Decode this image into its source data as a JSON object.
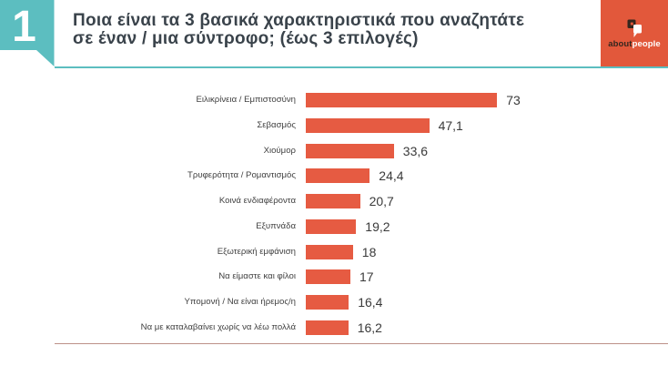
{
  "slide": {
    "question_number": "1",
    "title_line1": "Ποια είναι τα 3 βασικά χαρακτηριστικά που αναζητάτε",
    "title_line2": "σε έναν / μια σύντροφο; (έως 3 επιλογές)"
  },
  "logo": {
    "text_dark": "about",
    "text_light": "people",
    "icon": "speech-bubbles-icon"
  },
  "colors": {
    "teal": "#5cbec0",
    "bar_orange": "#e65b42",
    "logo_background": "#e2583b",
    "title_text": "#3a434b",
    "category_text": "#3f3f3f",
    "value_text": "#3a3a3a",
    "bottom_rule": "#bd9189"
  },
  "chart_data": {
    "type": "bar",
    "orientation": "horizontal",
    "title": "Ποια είναι τα 3 βασικά χαρακτηριστικά που αναζητάτε σε έναν / μια σύντροφο; (έως 3 επιλογές)",
    "categories": [
      "Ειλικρίνεια / Εμπιστοσύνη",
      "Σεβασμός",
      "Χιούμορ",
      "Τρυφερότητα / Ρομαντισμός",
      "Κοινά ενδιαφέροντα",
      "Εξυπνάδα",
      "Εξωτερική εμφάνιση",
      "Να είμαστε και φίλοι",
      "Υπομονή / Να είναι ήρεμος/η",
      "Να με καταλαβαίνει χωρίς να λέω πολλά"
    ],
    "values": [
      73,
      47.1,
      33.6,
      24.4,
      20.7,
      19.2,
      18,
      17,
      16.4,
      16.2
    ],
    "value_labels": [
      "73",
      "47,1",
      "33,6",
      "24,4",
      "20,7",
      "19,2",
      "18",
      "17",
      "16,4",
      "16,2"
    ],
    "xlabel": "",
    "ylabel": "",
    "legend": false,
    "grid": false,
    "axes_shown": false
  }
}
